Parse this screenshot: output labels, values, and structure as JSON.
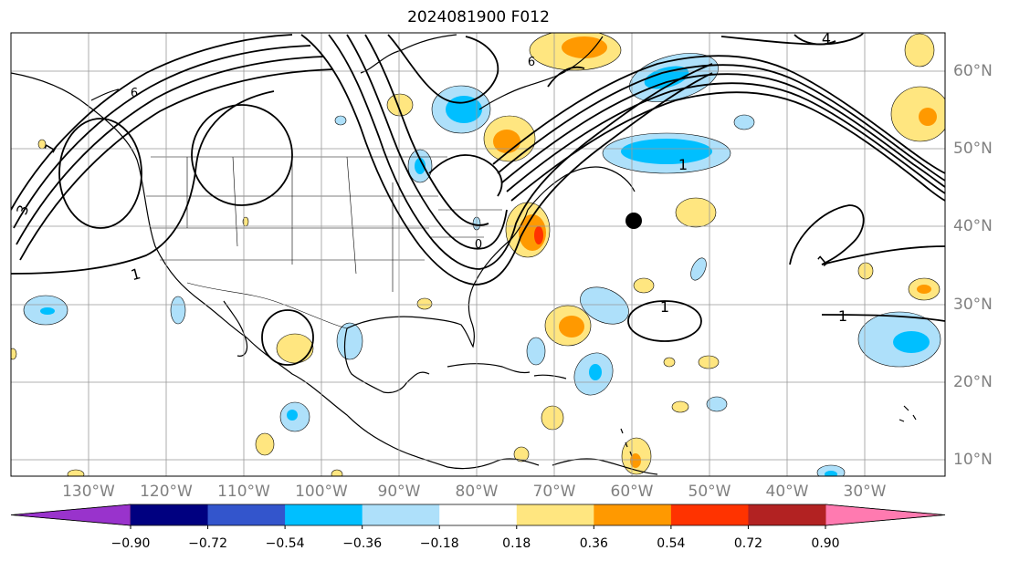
{
  "title": "2024081900 F012",
  "lat_labels": [
    "60°N",
    "50°N",
    "40°N",
    "30°N",
    "20°N",
    "10°N"
  ],
  "lon_labels": [
    "130°W",
    "120°W",
    "110°W",
    "100°W",
    "90°W",
    "80°W",
    "70°W",
    "60°W",
    "50°W",
    "40°W",
    "30°W"
  ],
  "contour_labels": [
    "1",
    "1",
    "1",
    "1",
    "1",
    "1",
    "3",
    "4",
    "6",
    "6",
    "0"
  ],
  "colorbar": {
    "ticks": [
      "−0.90",
      "−0.72",
      "−0.54",
      "−0.36",
      "−0.18",
      "0.18",
      "0.36",
      "0.54",
      "0.72",
      "0.90"
    ],
    "colors": [
      "#9933cc",
      "#000080",
      "#3355cc",
      "#00bfff",
      "#aee0fa",
      "#ffffff",
      "#ffe680",
      "#ff9900",
      "#ff3300",
      "#b22222",
      "#ff7ab0"
    ]
  },
  "marker": {
    "name": "black-dot",
    "lon": -60,
    "lat": 41
  }
}
